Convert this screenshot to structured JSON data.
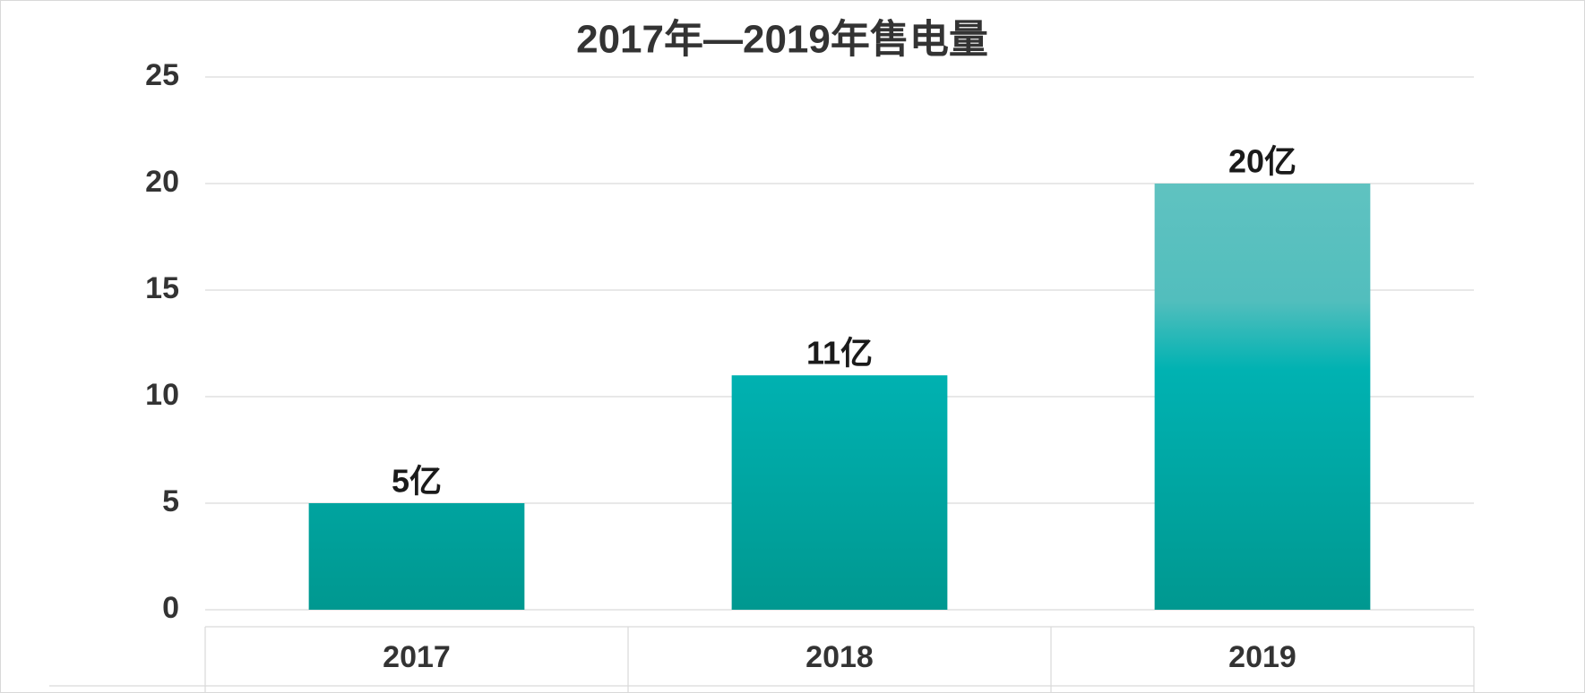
{
  "chart_data": {
    "type": "bar",
    "title": "2017年—2019年售电量",
    "categories": [
      "2017",
      "2018",
      "2019"
    ],
    "values": [
      5,
      11,
      20
    ],
    "value_labels": [
      "5亿",
      "11亿",
      "20亿"
    ],
    "ylim": [
      0,
      25
    ],
    "yticks": [
      0,
      5,
      10,
      15,
      20,
      25
    ],
    "grid": true,
    "color": "#00b0b0"
  }
}
